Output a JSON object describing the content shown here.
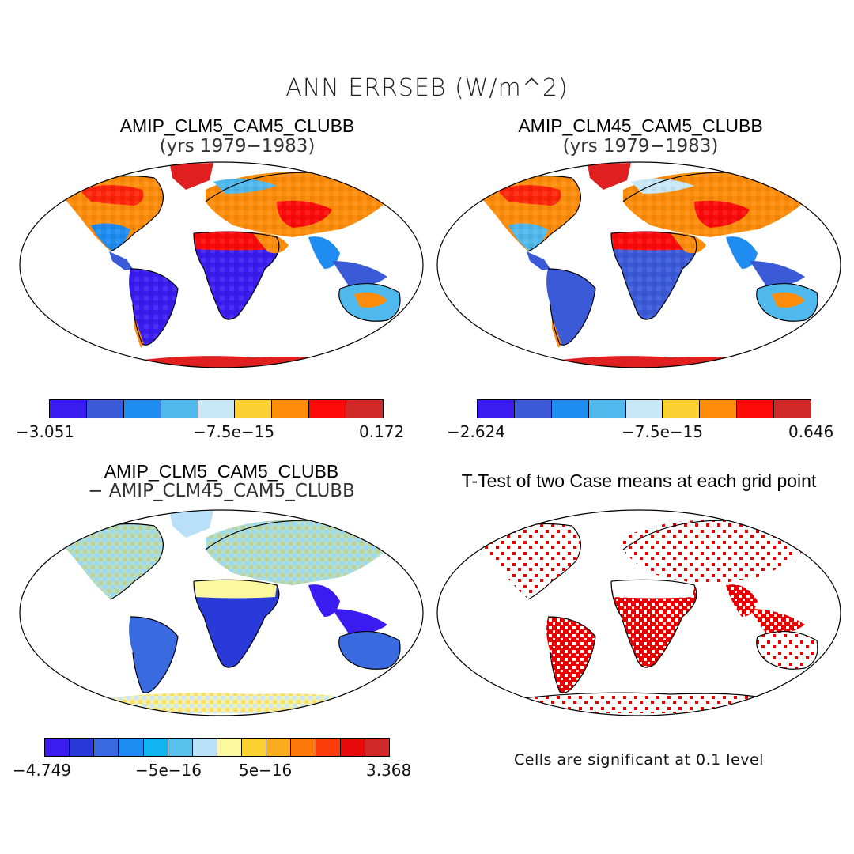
{
  "title": "ANN ERRSEB (W/m^2)",
  "panels": {
    "p1": {
      "title": "AMIP_CLM5_CAM5_CLUBB",
      "subtitle": "(yrs 1979−1983)"
    },
    "p2": {
      "title": "AMIP_CLM45_CAM5_CLUBB",
      "subtitle": "(yrs 1979−1983)"
    },
    "p3": {
      "title": "AMIP_CLM5_CAM5_CLUBB",
      "subtitle": "− AMIP_CLM45_CAM5_CLUBB"
    },
    "p4": {
      "title": "T-Test of two Case means at each grid point",
      "note": "Cells are significant at 0.1 level"
    }
  },
  "colorbars": {
    "cb1": {
      "min": "−3.051",
      "mid": "−7.5e−15",
      "max": "0.172",
      "colors": [
        "#3a1cf0",
        "#3a5ad8",
        "#1e8cf0",
        "#4fb8ec",
        "#c8e8f8",
        "#fcd232",
        "#fc8c0a",
        "#fc0a0a",
        "#d22828"
      ]
    },
    "cb2": {
      "min": "−2.624",
      "mid": "−7.5e−15",
      "max": "0.646",
      "colors": [
        "#3a1cf0",
        "#3a5ad8",
        "#1e8cf0",
        "#4fb8ec",
        "#c8e8f8",
        "#fcd232",
        "#fc8c0a",
        "#fc0a0a",
        "#d22828"
      ]
    },
    "cb3": {
      "min": "−4.749",
      "mid1": "−5e−16",
      "mid2": "5e−16",
      "max": "3.368",
      "colors": [
        "#3a1cf0",
        "#2a3ad8",
        "#3a6ae0",
        "#1e8cf0",
        "#10b4f0",
        "#58c0ec",
        "#b8e0f8",
        "#fcf8a0",
        "#fcd232",
        "#fcaa1e",
        "#fc780a",
        "#fc3c0a",
        "#e80a0a",
        "#d22828"
      ]
    }
  }
}
